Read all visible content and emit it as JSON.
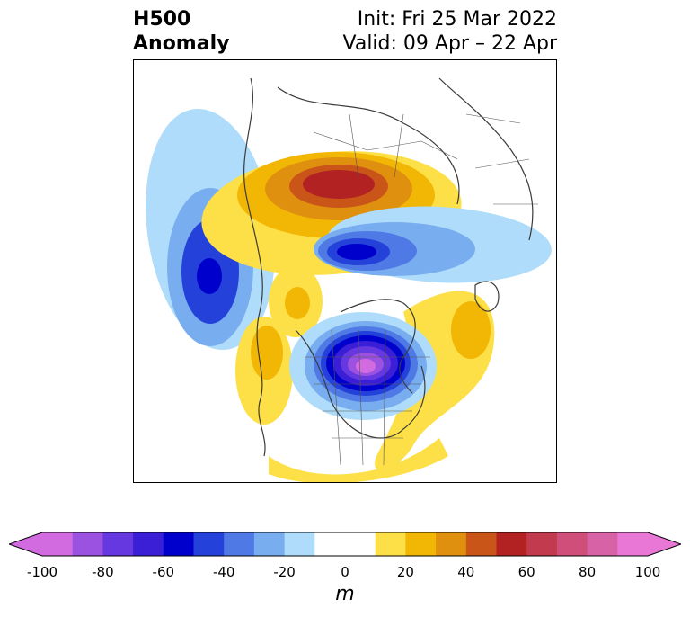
{
  "header": {
    "title_line1": "H500",
    "title_line2": "Anomaly",
    "init_text": "Init: Fri 25 Mar 2022",
    "valid_text": "Valid: 09 Apr – 22 Apr"
  },
  "colorbar": {
    "unit": "m",
    "tick_labels": [
      "-100",
      "-80",
      "-60",
      "-40",
      "-20",
      "0",
      "20",
      "40",
      "60",
      "80",
      "100"
    ],
    "bins": [
      {
        "low": -100,
        "high": -90,
        "color": "#d36be0"
      },
      {
        "low": -90,
        "high": -80,
        "color": "#9b52e0"
      },
      {
        "low": -80,
        "high": -70,
        "color": "#6638e0"
      },
      {
        "low": -70,
        "high": -60,
        "color": "#3a1fd6"
      },
      {
        "low": -60,
        "high": -50,
        "color": "#0000cc"
      },
      {
        "low": -50,
        "high": -40,
        "color": "#2441d9"
      },
      {
        "low": -40,
        "high": -30,
        "color": "#4f7ae6"
      },
      {
        "low": -30,
        "high": -20,
        "color": "#78adf0"
      },
      {
        "low": -20,
        "high": -10,
        "color": "#aedcfa"
      },
      {
        "low": -10,
        "high": 10,
        "color": "#ffffff"
      },
      {
        "low": 10,
        "high": 20,
        "color": "#fde047"
      },
      {
        "low": 20,
        "high": 30,
        "color": "#f2b705"
      },
      {
        "low": 30,
        "high": 40,
        "color": "#e0900f"
      },
      {
        "low": 40,
        "high": 50,
        "color": "#c95518"
      },
      {
        "low": 50,
        "high": 60,
        "color": "#b22222"
      },
      {
        "low": 60,
        "high": 70,
        "color": "#c23a4e"
      },
      {
        "low": 70,
        "high": 80,
        "color": "#cf4f7a"
      },
      {
        "low": 80,
        "high": 90,
        "color": "#d862a6"
      },
      {
        "low": 90,
        "high": 100,
        "color": "#e877d6"
      }
    ],
    "under_color": "#d36be0",
    "over_color": "#e877d6"
  },
  "map": {
    "anomaly_centers": [
      {
        "name": "ridge-north",
        "peak": 54
      },
      {
        "name": "trough-northeast",
        "peak": -58
      },
      {
        "name": "trough-pacific",
        "peak": -55
      },
      {
        "name": "trough-hudson-bay",
        "peak": -95
      },
      {
        "name": "ridge-atlantic",
        "peak": 25
      },
      {
        "name": "ridge-west-coast",
        "peak": 25
      }
    ]
  }
}
